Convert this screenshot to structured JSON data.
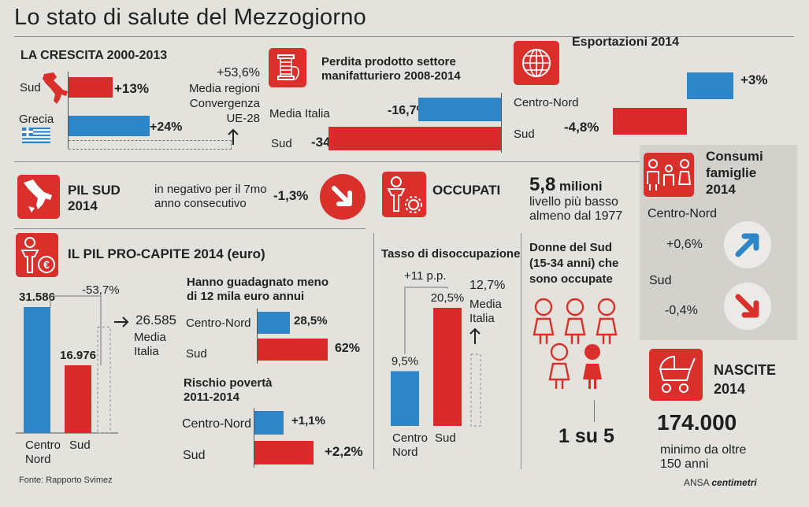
{
  "title": "Lo stato di salute del Mezzogiorno",
  "source": "Fonte: Rapporto Svimez",
  "credit": {
    "ansa": "ANSA",
    "brand": "centimetri"
  },
  "colors": {
    "red": "#d92b2b",
    "blue": "#2e86c8",
    "icon_red": "#d9302c",
    "panel": "#d3d1cb"
  },
  "crescita": {
    "heading": "LA CRESCITA 2000-2013",
    "note_value": "+53,6%",
    "note_label": [
      "Media regioni",
      "Convergenza",
      "UE-28"
    ],
    "icons": [
      "italy-map-icon",
      "greece-flag-icon",
      "arrow-up-icon"
    ]
  },
  "manifatturiero": {
    "heading": [
      "Perdita prodotto settore",
      "manifatturiero 2008-2014"
    ],
    "icon": "thread-spool-icon"
  },
  "esportazioni": {
    "heading": "Esportazioni 2014",
    "icon": "globe-icon"
  },
  "pil_sud": {
    "heading": [
      "PIL SUD",
      "2014"
    ],
    "text": [
      "in negativo per il 7mo",
      "anno consecutivo"
    ],
    "value": "-1,3%",
    "icons": [
      "italy-south-icon",
      "arrow-down-right-icon"
    ]
  },
  "occupati": {
    "heading": "OCCUPATI",
    "big": "5,8",
    "big_unit": "milioni",
    "text": [
      "livello più basso",
      "almeno dal 1977"
    ],
    "icon": "worker-gear-icon"
  },
  "consumi": {
    "heading": [
      "Consumi",
      "famiglie",
      "2014"
    ],
    "rows": [
      {
        "label": "Centro-Nord",
        "value": "+0,6%",
        "icon": "arrow-up-right-icon"
      },
      {
        "label": "Sud",
        "value": "-0,4%",
        "icon": "arrow-down-right-icon"
      }
    ],
    "icon": "family-icon"
  },
  "pil_procapite": {
    "heading": "IL PIL PRO-CAPITE 2014 (euro)",
    "diff": "-53,7%",
    "media_value": "26.585",
    "media_label": [
      "Media",
      "Italia"
    ],
    "icon": "person-euro-icon"
  },
  "guadagno": {
    "heading": [
      "Hanno guadagnato meno",
      "di 12 mila euro annui"
    ]
  },
  "poverta": {
    "heading": [
      "Rischio povertà",
      "2011-2014"
    ]
  },
  "disoccupazione": {
    "heading": "Tasso di disoccupazione",
    "diff": "+11 p.p.",
    "media_value": "12,7%",
    "media_label": [
      "Media",
      "Italia"
    ]
  },
  "donne": {
    "heading": [
      "Donne del Sud",
      "(15-34 anni) che",
      "sono occupate"
    ],
    "ratio": "1 su 5"
  },
  "nascite": {
    "heading": [
      "NASCITE",
      "2014"
    ],
    "value": "174.000",
    "text": [
      "minimo da oltre",
      "150 anni"
    ],
    "icon": "pram-icon"
  },
  "chart_data": [
    {
      "id": "crescita",
      "type": "bar",
      "orientation": "horizontal",
      "title": "LA CRESCITA 2000-2013",
      "categories": [
        "Sud",
        "Grecia"
      ],
      "values": [
        13,
        24
      ],
      "labels": [
        "+13%",
        "+24%"
      ],
      "reference": 53.6,
      "unit": "%"
    },
    {
      "id": "manifatturiero",
      "type": "bar",
      "orientation": "horizontal",
      "categories": [
        "Media Italia",
        "Sud"
      ],
      "values": [
        -16.7,
        -34.8
      ],
      "labels": [
        "-16,7%",
        "-34,8%"
      ],
      "unit": "%"
    },
    {
      "id": "esportazioni",
      "type": "bar",
      "orientation": "horizontal",
      "title": "Esportazioni 2014",
      "categories": [
        "Centro-Nord",
        "Sud"
      ],
      "values": [
        3,
        -4.8
      ],
      "labels": [
        "+3%",
        "-4,8%"
      ],
      "unit": "%"
    },
    {
      "id": "pil_procapite",
      "type": "bar",
      "title": "IL PIL PRO-CAPITE 2014 (euro)",
      "categories": [
        "Centro Nord",
        "Sud"
      ],
      "values": [
        31586,
        16976
      ],
      "labels": [
        "31.586",
        "16.976"
      ],
      "reference": 26585
    },
    {
      "id": "guadagno",
      "type": "bar",
      "orientation": "horizontal",
      "title": "Hanno guadagnato meno di 12 mila euro annui",
      "categories": [
        "Centro-Nord",
        "Sud"
      ],
      "values": [
        28.5,
        62
      ],
      "labels": [
        "28,5%",
        "62%"
      ],
      "unit": "%"
    },
    {
      "id": "poverta",
      "type": "bar",
      "orientation": "horizontal",
      "title": "Rischio povertà 2011-2014",
      "categories": [
        "Centro-Nord",
        "Sud"
      ],
      "values": [
        1.1,
        2.2
      ],
      "labels": [
        "+1,1%",
        "+2,2%"
      ],
      "unit": "%"
    },
    {
      "id": "disoccupazione",
      "type": "bar",
      "title": "Tasso di disoccupazione",
      "categories": [
        "Centro Nord",
        "Sud"
      ],
      "values": [
        9.5,
        20.5
      ],
      "labels": [
        "9,5%",
        "20,5%"
      ],
      "reference": 12.7,
      "unit": "%"
    }
  ]
}
